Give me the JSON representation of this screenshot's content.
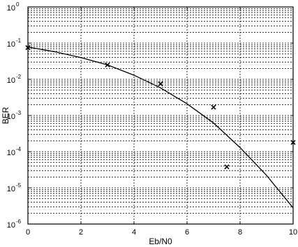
{
  "chart_data": {
    "type": "line",
    "xlabel": "Eb/N0",
    "ylabel": "BER",
    "xlim": [
      0,
      10
    ],
    "ylim": [
      1e-06,
      1
    ],
    "yscale": "log",
    "grid": true,
    "x_ticks": [
      "0",
      "2",
      "4",
      "6",
      "8",
      "10"
    ],
    "y_ticks": [
      {
        "base": "10",
        "exp": "0",
        "value": 1
      },
      {
        "base": "10",
        "exp": "-1",
        "value": 0.1
      },
      {
        "base": "10",
        "exp": "-2",
        "value": 0.01
      },
      {
        "base": "10",
        "exp": "-3",
        "value": 0.001
      },
      {
        "base": "10",
        "exp": "-4",
        "value": 0.0001
      },
      {
        "base": "10",
        "exp": "-5",
        "value": 1e-05
      },
      {
        "base": "10",
        "exp": "-6",
        "value": 1e-06
      }
    ],
    "series": [
      {
        "style": "line",
        "color": "#000000",
        "x": [
          0,
          1,
          2,
          3,
          4,
          5,
          6,
          7,
          8,
          9,
          10
        ],
        "y": [
          0.078,
          0.058,
          0.04,
          0.025,
          0.013,
          0.0058,
          0.0021,
          0.00062,
          0.00013,
          2.2e-05,
          2.8e-06
        ]
      },
      {
        "style": "markers",
        "marker": "x",
        "color": "#000000",
        "x": [
          0,
          3,
          5,
          7,
          7.5,
          10
        ],
        "y": [
          0.075,
          0.025,
          0.0075,
          0.0017,
          3.8e-05,
          0.00018
        ]
      }
    ]
  }
}
